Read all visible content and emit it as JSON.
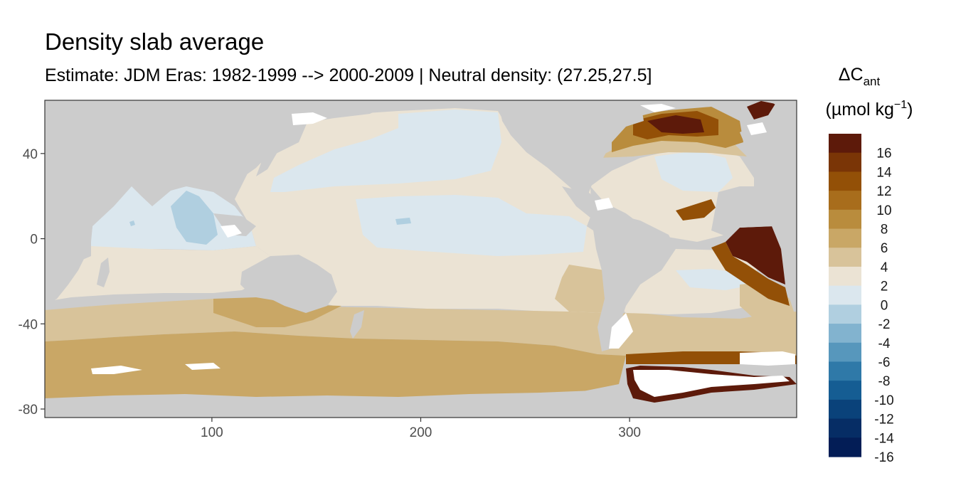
{
  "title": "Density slab average",
  "subtitle": "Estimate: JDM Eras: 1982-1999 --> 2000-2009 | Neutral density: (27.25,27.5]",
  "legend": {
    "title_line1_main": "ΔC",
    "title_line1_sub": "ant",
    "title_line2_prefix": "(µmol kg",
    "title_line2_sup": "−1",
    "title_line2_suffix": ")",
    "bins": [
      {
        "label": "16",
        "color": "#5d1a0a"
      },
      {
        "label": "14",
        "color": "#7a3506"
      },
      {
        "label": "12",
        "color": "#935007"
      },
      {
        "label": "10",
        "color": "#a86d1c"
      },
      {
        "label": "8",
        "color": "#b98c3d"
      },
      {
        "label": "6",
        "color": "#c9a766"
      },
      {
        "label": "4",
        "color": "#d8c39a"
      },
      {
        "label": "2",
        "color": "#ebe3d4"
      },
      {
        "label": "0",
        "color": "#dbe7ee"
      },
      {
        "label": "-2",
        "color": "#b0cfe0"
      },
      {
        "label": "-4",
        "color": "#82b3cf"
      },
      {
        "label": "-6",
        "color": "#5797bc"
      },
      {
        "label": "-8",
        "color": "#2f79a8"
      },
      {
        "label": "-10",
        "color": "#155d93"
      },
      {
        "label": "-12",
        "color": "#0a427a"
      },
      {
        "label": "-14",
        "color": "#062d65"
      },
      {
        "label": "-16",
        "color": "#031d56"
      }
    ]
  },
  "axes": {
    "x_ticks": [
      {
        "value": 100,
        "label": "100"
      },
      {
        "value": 200,
        "label": "200"
      },
      {
        "value": 300,
        "label": "300"
      }
    ],
    "y_ticks": [
      {
        "value": 40,
        "label": "40"
      },
      {
        "value": 0,
        "label": "0"
      },
      {
        "value": -40,
        "label": "-40"
      },
      {
        "value": -80,
        "label": "-80"
      }
    ],
    "xlim": [
      20,
      380
    ],
    "ylim": [
      -84,
      65
    ]
  },
  "colors": {
    "land": "#cccccc",
    "no_data": "#ffffff",
    "panel_border": "#333333"
  }
}
